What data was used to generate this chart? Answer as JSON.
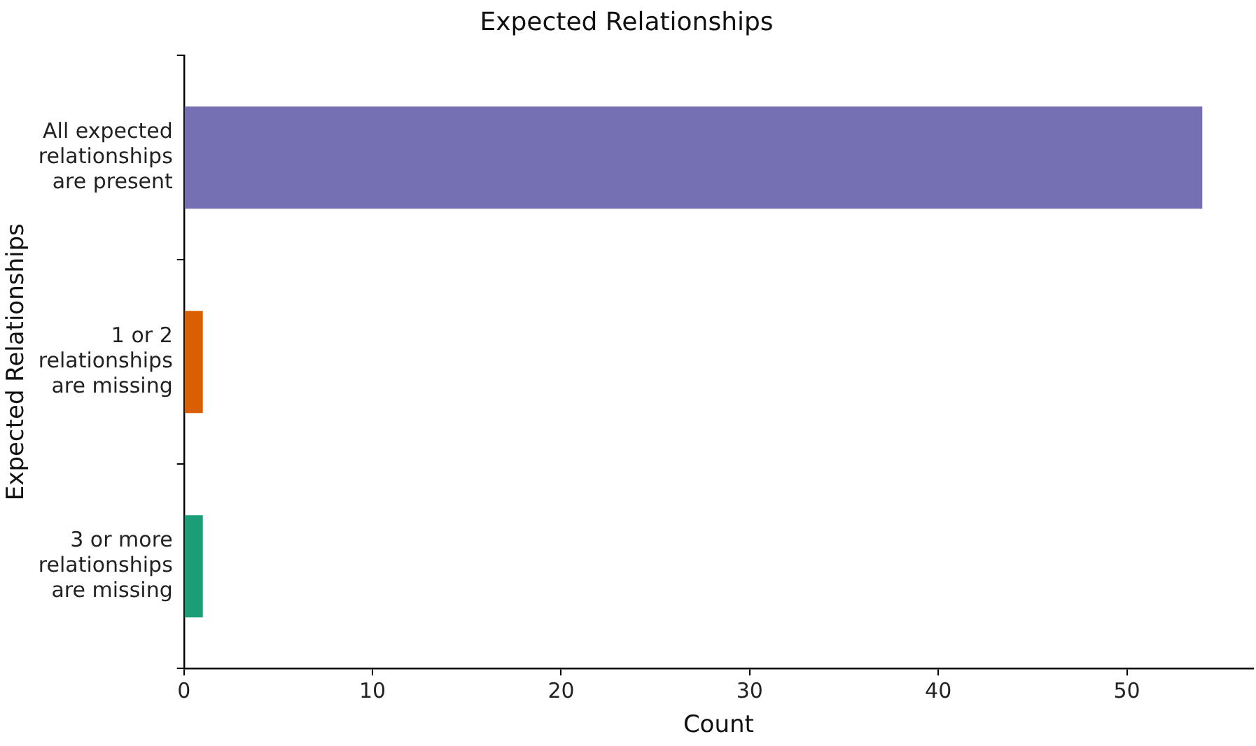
{
  "chart_data": {
    "type": "bar",
    "orientation": "horizontal",
    "title": "Expected Relationships",
    "xlabel": "Count",
    "ylabel": "Expected Relationships",
    "categories": [
      "All expected\nrelationships\nare present",
      "1 or 2\nrelationships\nare missing",
      "3 or more\nrelationships\nare missing"
    ],
    "values": [
      54,
      1,
      1
    ],
    "colors": [
      "#7570b3",
      "#d95f02",
      "#1b9e77"
    ],
    "xlim": [
      0,
      56.7
    ],
    "xticks": [
      0,
      10,
      20,
      30,
      40,
      50
    ],
    "grid": false,
    "legend": false
  }
}
